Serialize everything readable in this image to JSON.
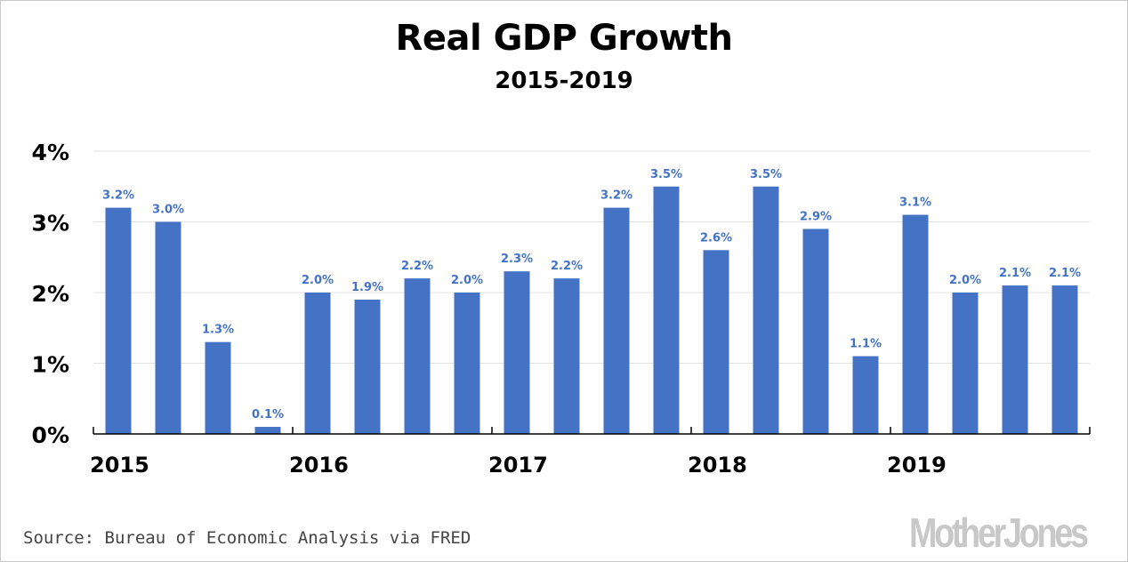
{
  "header": {
    "title": "Real GDP Growth",
    "subtitle": "2015-2019"
  },
  "footer": {
    "source": "Source: Bureau of Economic Analysis via FRED",
    "logo": "MotherJones"
  },
  "colors": {
    "bar": "#4472c4",
    "label": "#4472c4",
    "grid": "#e3e3e3",
    "axis": "#000000"
  },
  "chart_data": {
    "type": "bar",
    "title": "Real GDP Growth",
    "subtitle": "2015-2019",
    "xlabel": "",
    "ylabel": "",
    "ylim": [
      0,
      4
    ],
    "yticks": [
      0,
      1,
      2,
      3,
      4
    ],
    "ytick_labels": [
      "0%",
      "1%",
      "2%",
      "3%",
      "4%"
    ],
    "grid": true,
    "legend": "none",
    "year_labels": [
      "2015",
      "2016",
      "2017",
      "2018",
      "2019"
    ],
    "categories": [
      "2015 Q1",
      "2015 Q2",
      "2015 Q3",
      "2015 Q4",
      "2016 Q1",
      "2016 Q2",
      "2016 Q3",
      "2016 Q4",
      "2017 Q1",
      "2017 Q2",
      "2017 Q3",
      "2017 Q4",
      "2018 Q1",
      "2018 Q2",
      "2018 Q3",
      "2018 Q4",
      "2019 Q1",
      "2019 Q2",
      "2019 Q3",
      "2019 Q4"
    ],
    "values": [
      3.2,
      3.0,
      1.3,
      0.1,
      2.0,
      1.9,
      2.2,
      2.0,
      2.3,
      2.2,
      3.2,
      3.5,
      2.6,
      3.5,
      2.9,
      1.1,
      3.1,
      2.0,
      2.1,
      2.1
    ],
    "data_labels": [
      "3.2%",
      "3.0%",
      "1.3%",
      "0.1%",
      "2.0%",
      "1.9%",
      "2.2%",
      "2.0%",
      "2.3%",
      "2.2%",
      "3.2%",
      "3.5%",
      "2.6%",
      "3.5%",
      "2.9%",
      "1.1%",
      "3.1%",
      "2.0%",
      "2.1%",
      "2.1%"
    ],
    "source": "Source: Bureau of Economic Analysis via FRED"
  }
}
